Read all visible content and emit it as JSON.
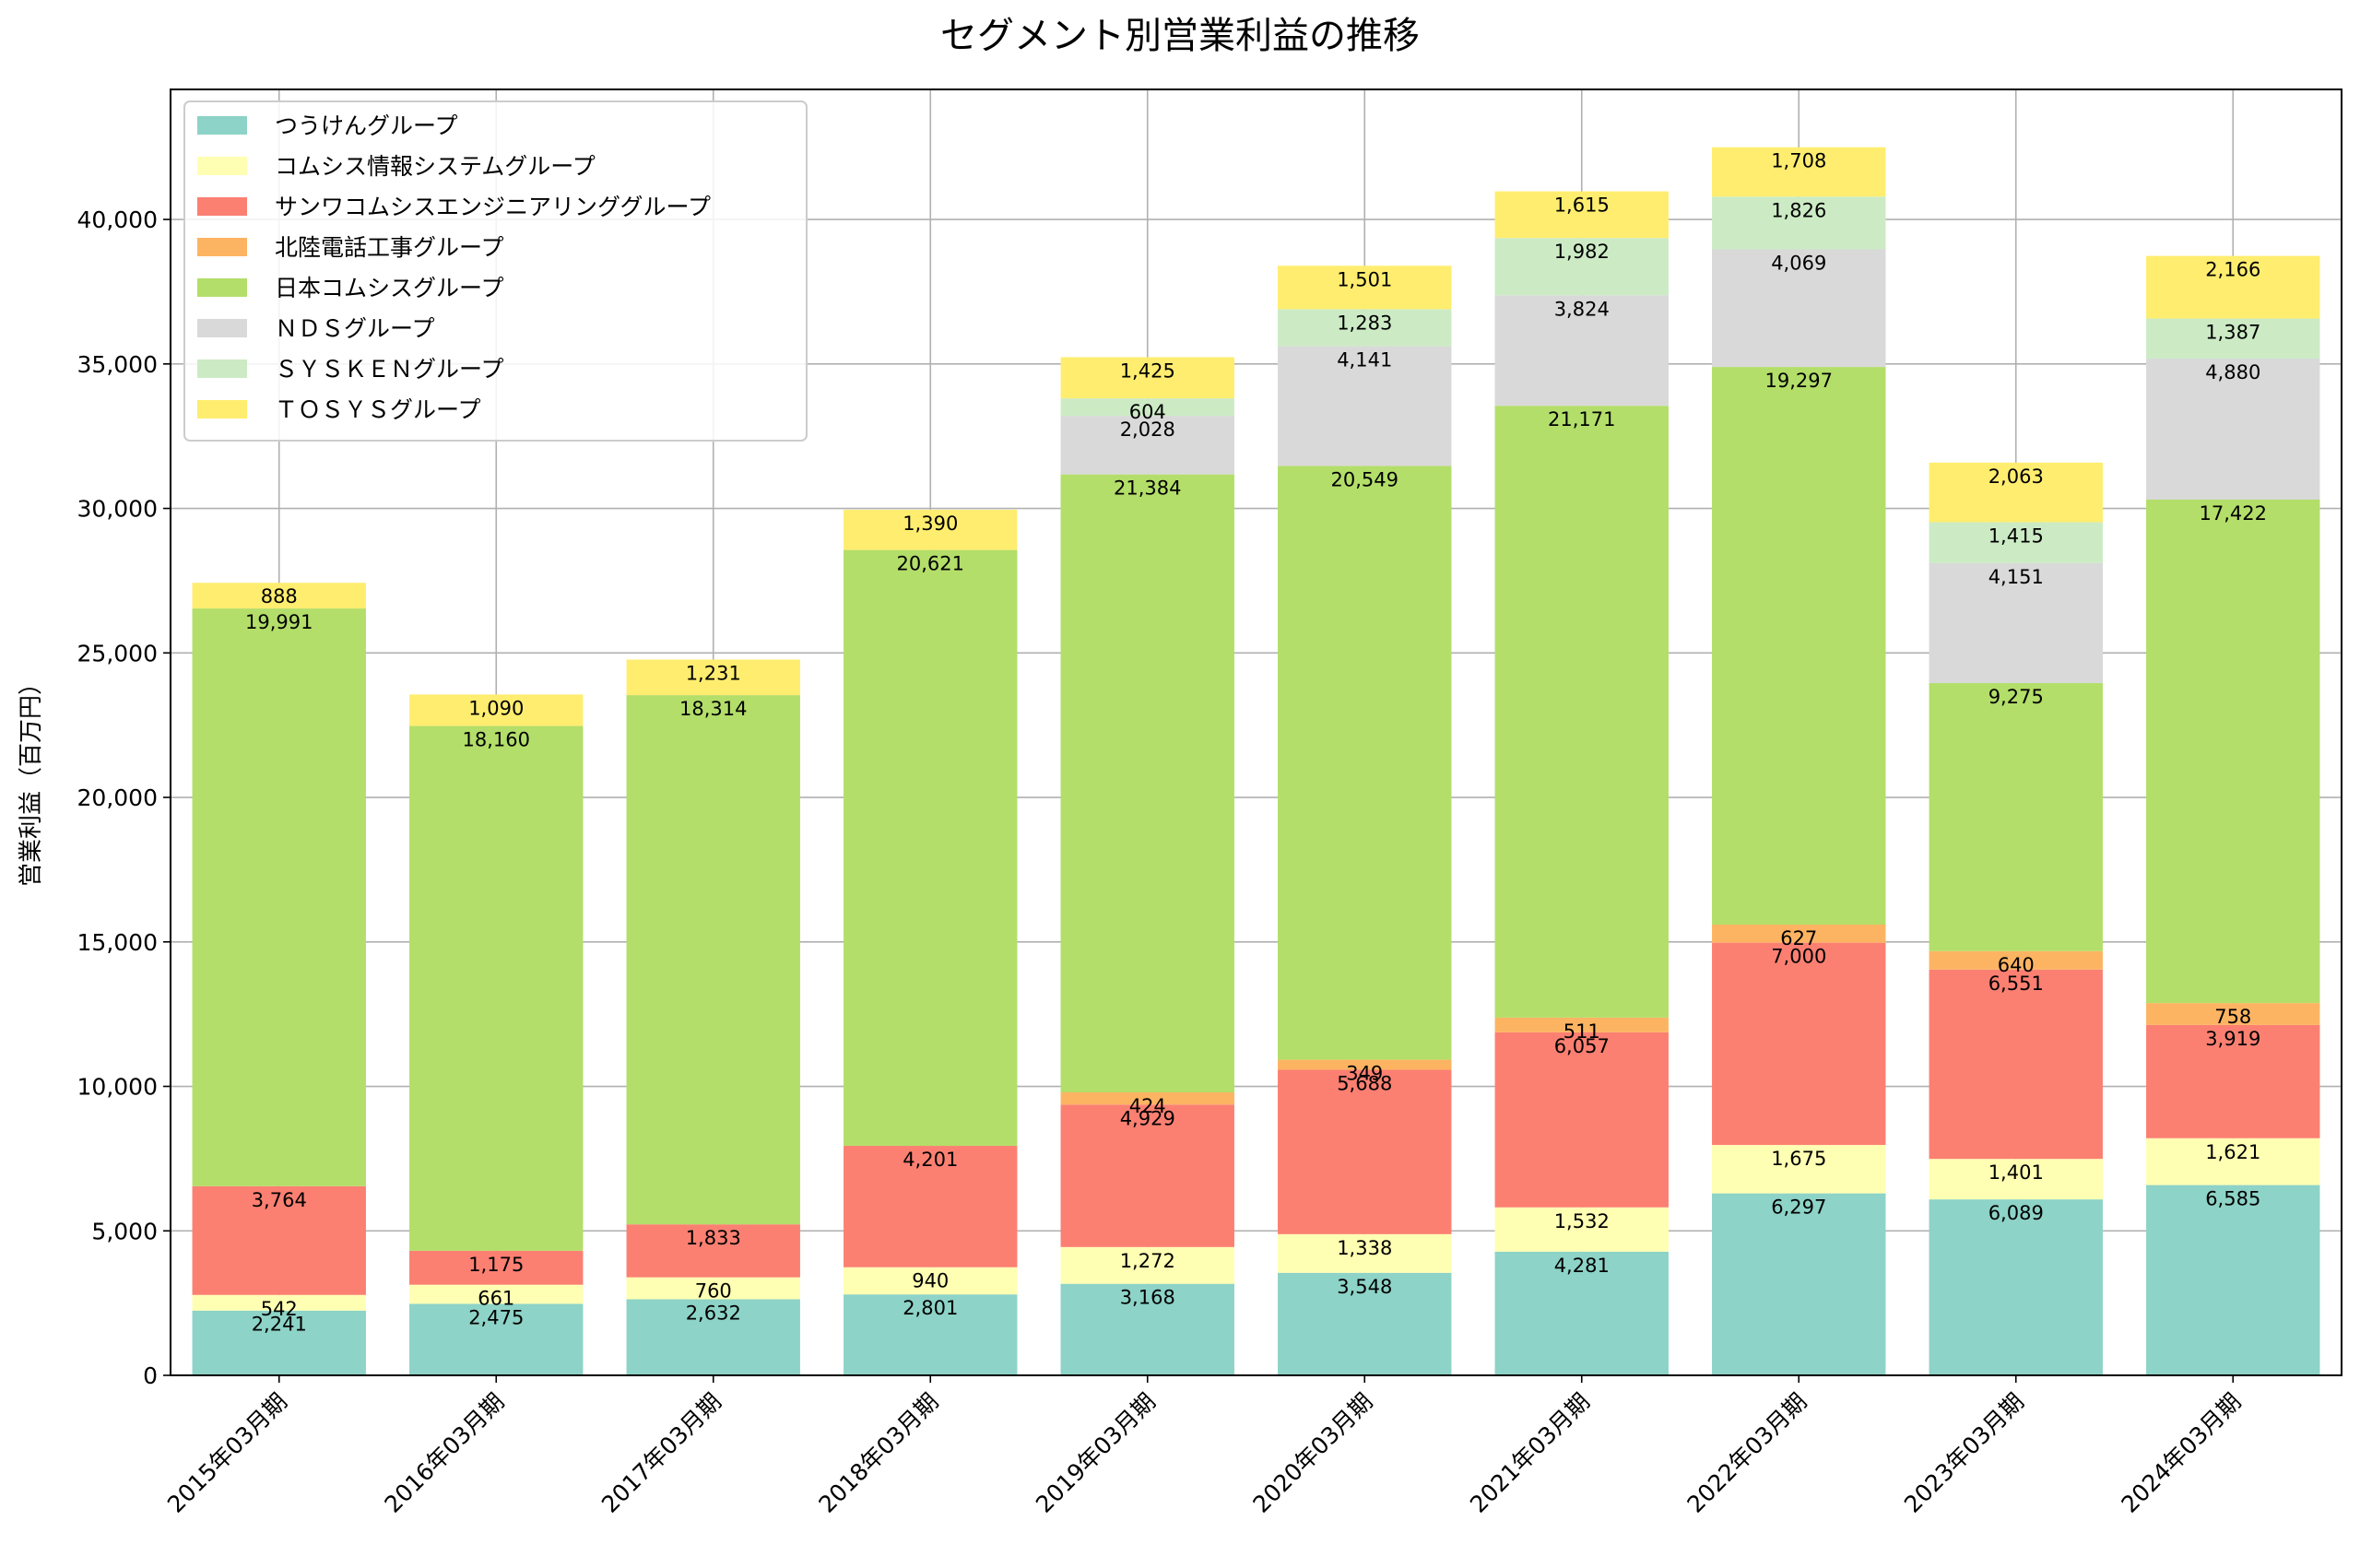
{
  "chart_data": {
    "type": "bar",
    "stacked": true,
    "title": "セグメント別営業利益の推移",
    "xlabel": "",
    "ylabel": "営業利益（百万円）",
    "ylim": [
      0,
      44500
    ],
    "yticks": [
      0,
      5000,
      10000,
      15000,
      20000,
      25000,
      30000,
      35000,
      40000
    ],
    "ytick_labels": [
      "0",
      "5,000",
      "10,000",
      "15,000",
      "20,000",
      "25,000",
      "30,000",
      "35,000",
      "40,000"
    ],
    "grid": true,
    "legend_position": "top-left",
    "categories": [
      "2015年03月期",
      "2016年03月期",
      "2017年03月期",
      "2018年03月期",
      "2019年03月期",
      "2020年03月期",
      "2021年03月期",
      "2022年03月期",
      "2023年03月期",
      "2024年03月期"
    ],
    "series": [
      {
        "name": "つうけんグループ",
        "color": "#8dd3c7",
        "values": [
          2241,
          2475,
          2632,
          2801,
          3168,
          3548,
          4281,
          6297,
          6089,
          6585
        ],
        "labels": [
          "2,241",
          "2,475",
          "2,632",
          "2,801",
          "3,168",
          "3,548",
          "4,281",
          "6,297",
          "6,089",
          "6,585"
        ]
      },
      {
        "name": "コムシス情報システムグループ",
        "color": "#ffffb3",
        "values": [
          542,
          661,
          760,
          940,
          1272,
          1338,
          1532,
          1675,
          1401,
          1621
        ],
        "labels": [
          "542",
          "661",
          "760",
          "940",
          "1,272",
          "1,338",
          "1,532",
          "1,675",
          "1,401",
          "1,621"
        ]
      },
      {
        "name": "サンワコムシスエンジニアリンググループ",
        "color": "#fb8072",
        "values": [
          3764,
          1175,
          1833,
          4201,
          4929,
          5688,
          6057,
          7000,
          6551,
          3919
        ],
        "labels": [
          "3,764",
          "1,175",
          "1,833",
          "4,201",
          "4,929",
          "5,688",
          "6,057",
          "7,000",
          "6,551",
          "3,919"
        ]
      },
      {
        "name": "北陸電話工事グループ",
        "color": "#fdb462",
        "values": [
          null,
          null,
          null,
          null,
          424,
          349,
          511,
          627,
          640,
          758
        ],
        "labels": [
          "",
          "",
          "",
          "",
          "424",
          "349",
          "511",
          "627",
          "640",
          "758"
        ]
      },
      {
        "name": "日本コムシスグループ",
        "color": "#b3de69",
        "values": [
          19991,
          18160,
          18314,
          20621,
          21384,
          20549,
          21171,
          19297,
          9275,
          17422
        ],
        "labels": [
          "19,991",
          "18,160",
          "18,314",
          "20,621",
          "21,384",
          "20,549",
          "21,171",
          "19,297",
          "9,275",
          "17,422"
        ]
      },
      {
        "name": "ＮＤＳグループ",
        "color": "#d9d9d9",
        "values": [
          null,
          null,
          null,
          null,
          2028,
          4141,
          3824,
          4069,
          4151,
          4880
        ],
        "labels": [
          "",
          "",
          "",
          "",
          "2,028",
          "4,141",
          "3,824",
          "4,069",
          "4,151",
          "4,880"
        ]
      },
      {
        "name": "ＳＹＳＫＥＮグループ",
        "color": "#ccebc5",
        "values": [
          null,
          null,
          null,
          null,
          604,
          1283,
          1982,
          1826,
          1415,
          1387
        ],
        "labels": [
          "",
          "",
          "",
          "",
          "604",
          "1,283",
          "1,982",
          "1,826",
          "1,415",
          "1,387"
        ]
      },
      {
        "name": "ＴＯＳＹＳグループ",
        "color": "#ffed6f",
        "values": [
          888,
          1090,
          1231,
          1390,
          1425,
          1501,
          1615,
          1708,
          2063,
          2166
        ],
        "labels": [
          "888",
          "1,090",
          "1,231",
          "1,390",
          "1,425",
          "1,501",
          "1,615",
          "1,708",
          "2,063",
          "2,166"
        ]
      }
    ]
  }
}
